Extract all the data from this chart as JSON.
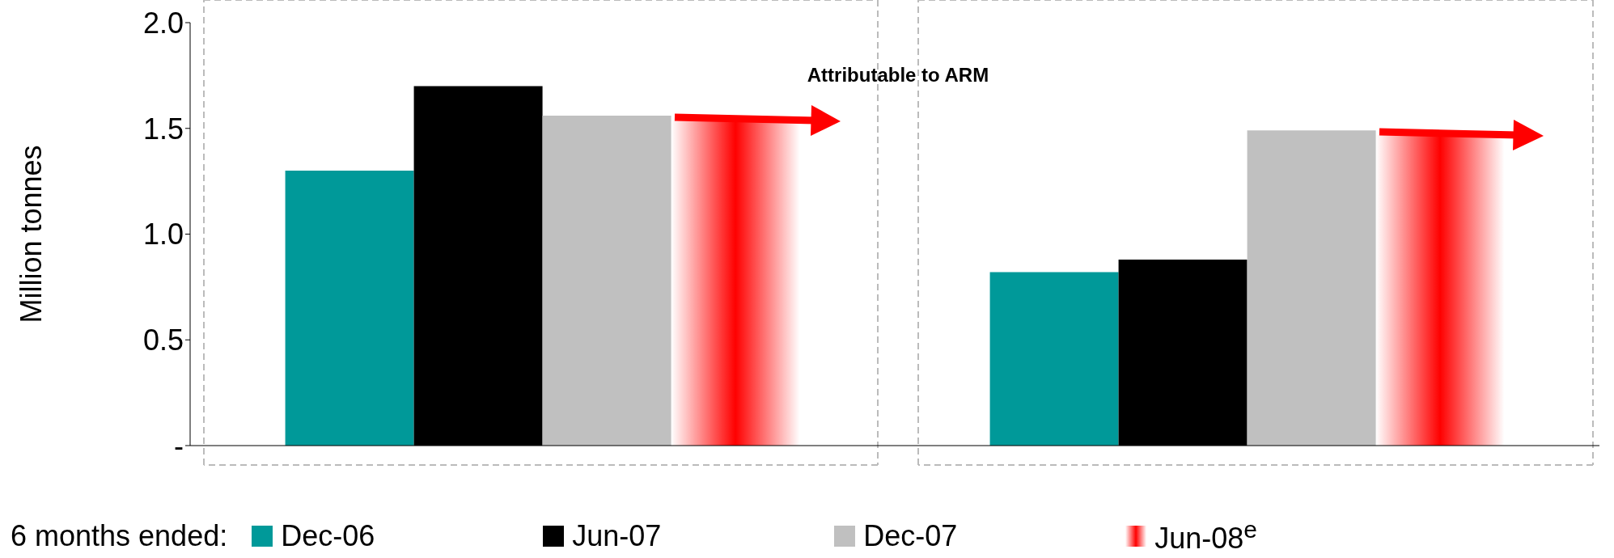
{
  "chart_data": {
    "type": "bar",
    "categories": [
      null,
      null
    ],
    "ylabel": "Million tonnes",
    "ylim": [
      0,
      2
    ],
    "yticks": [
      {
        "value": 0,
        "label": "-"
      },
      {
        "value": 0.5,
        "label": "0.5"
      },
      {
        "value": 1,
        "label": "1.0"
      },
      {
        "value": 1.5,
        "label": "1.5"
      },
      {
        "value": 2,
        "label": "2.0"
      }
    ],
    "series": [
      {
        "name": "Dec-06",
        "color": "#009999",
        "values": [
          1.3,
          0.82
        ]
      },
      {
        "name": "Jun-07",
        "color": "#000000",
        "values": [
          1.7,
          0.88
        ]
      },
      {
        "name": "Dec-07",
        "color": "#c0c0c0",
        "values": [
          1.56,
          1.49
        ]
      },
      {
        "name": "Jun-08$^{e}$",
        "color": "#ff0000",
        "values": [
          1.54,
          1.47
        ]
      }
    ],
    "legend_title": "6 months ended:",
    "legend": "bottom",
    "annotations": [
      "Attributable to ARM"
    ]
  }
}
